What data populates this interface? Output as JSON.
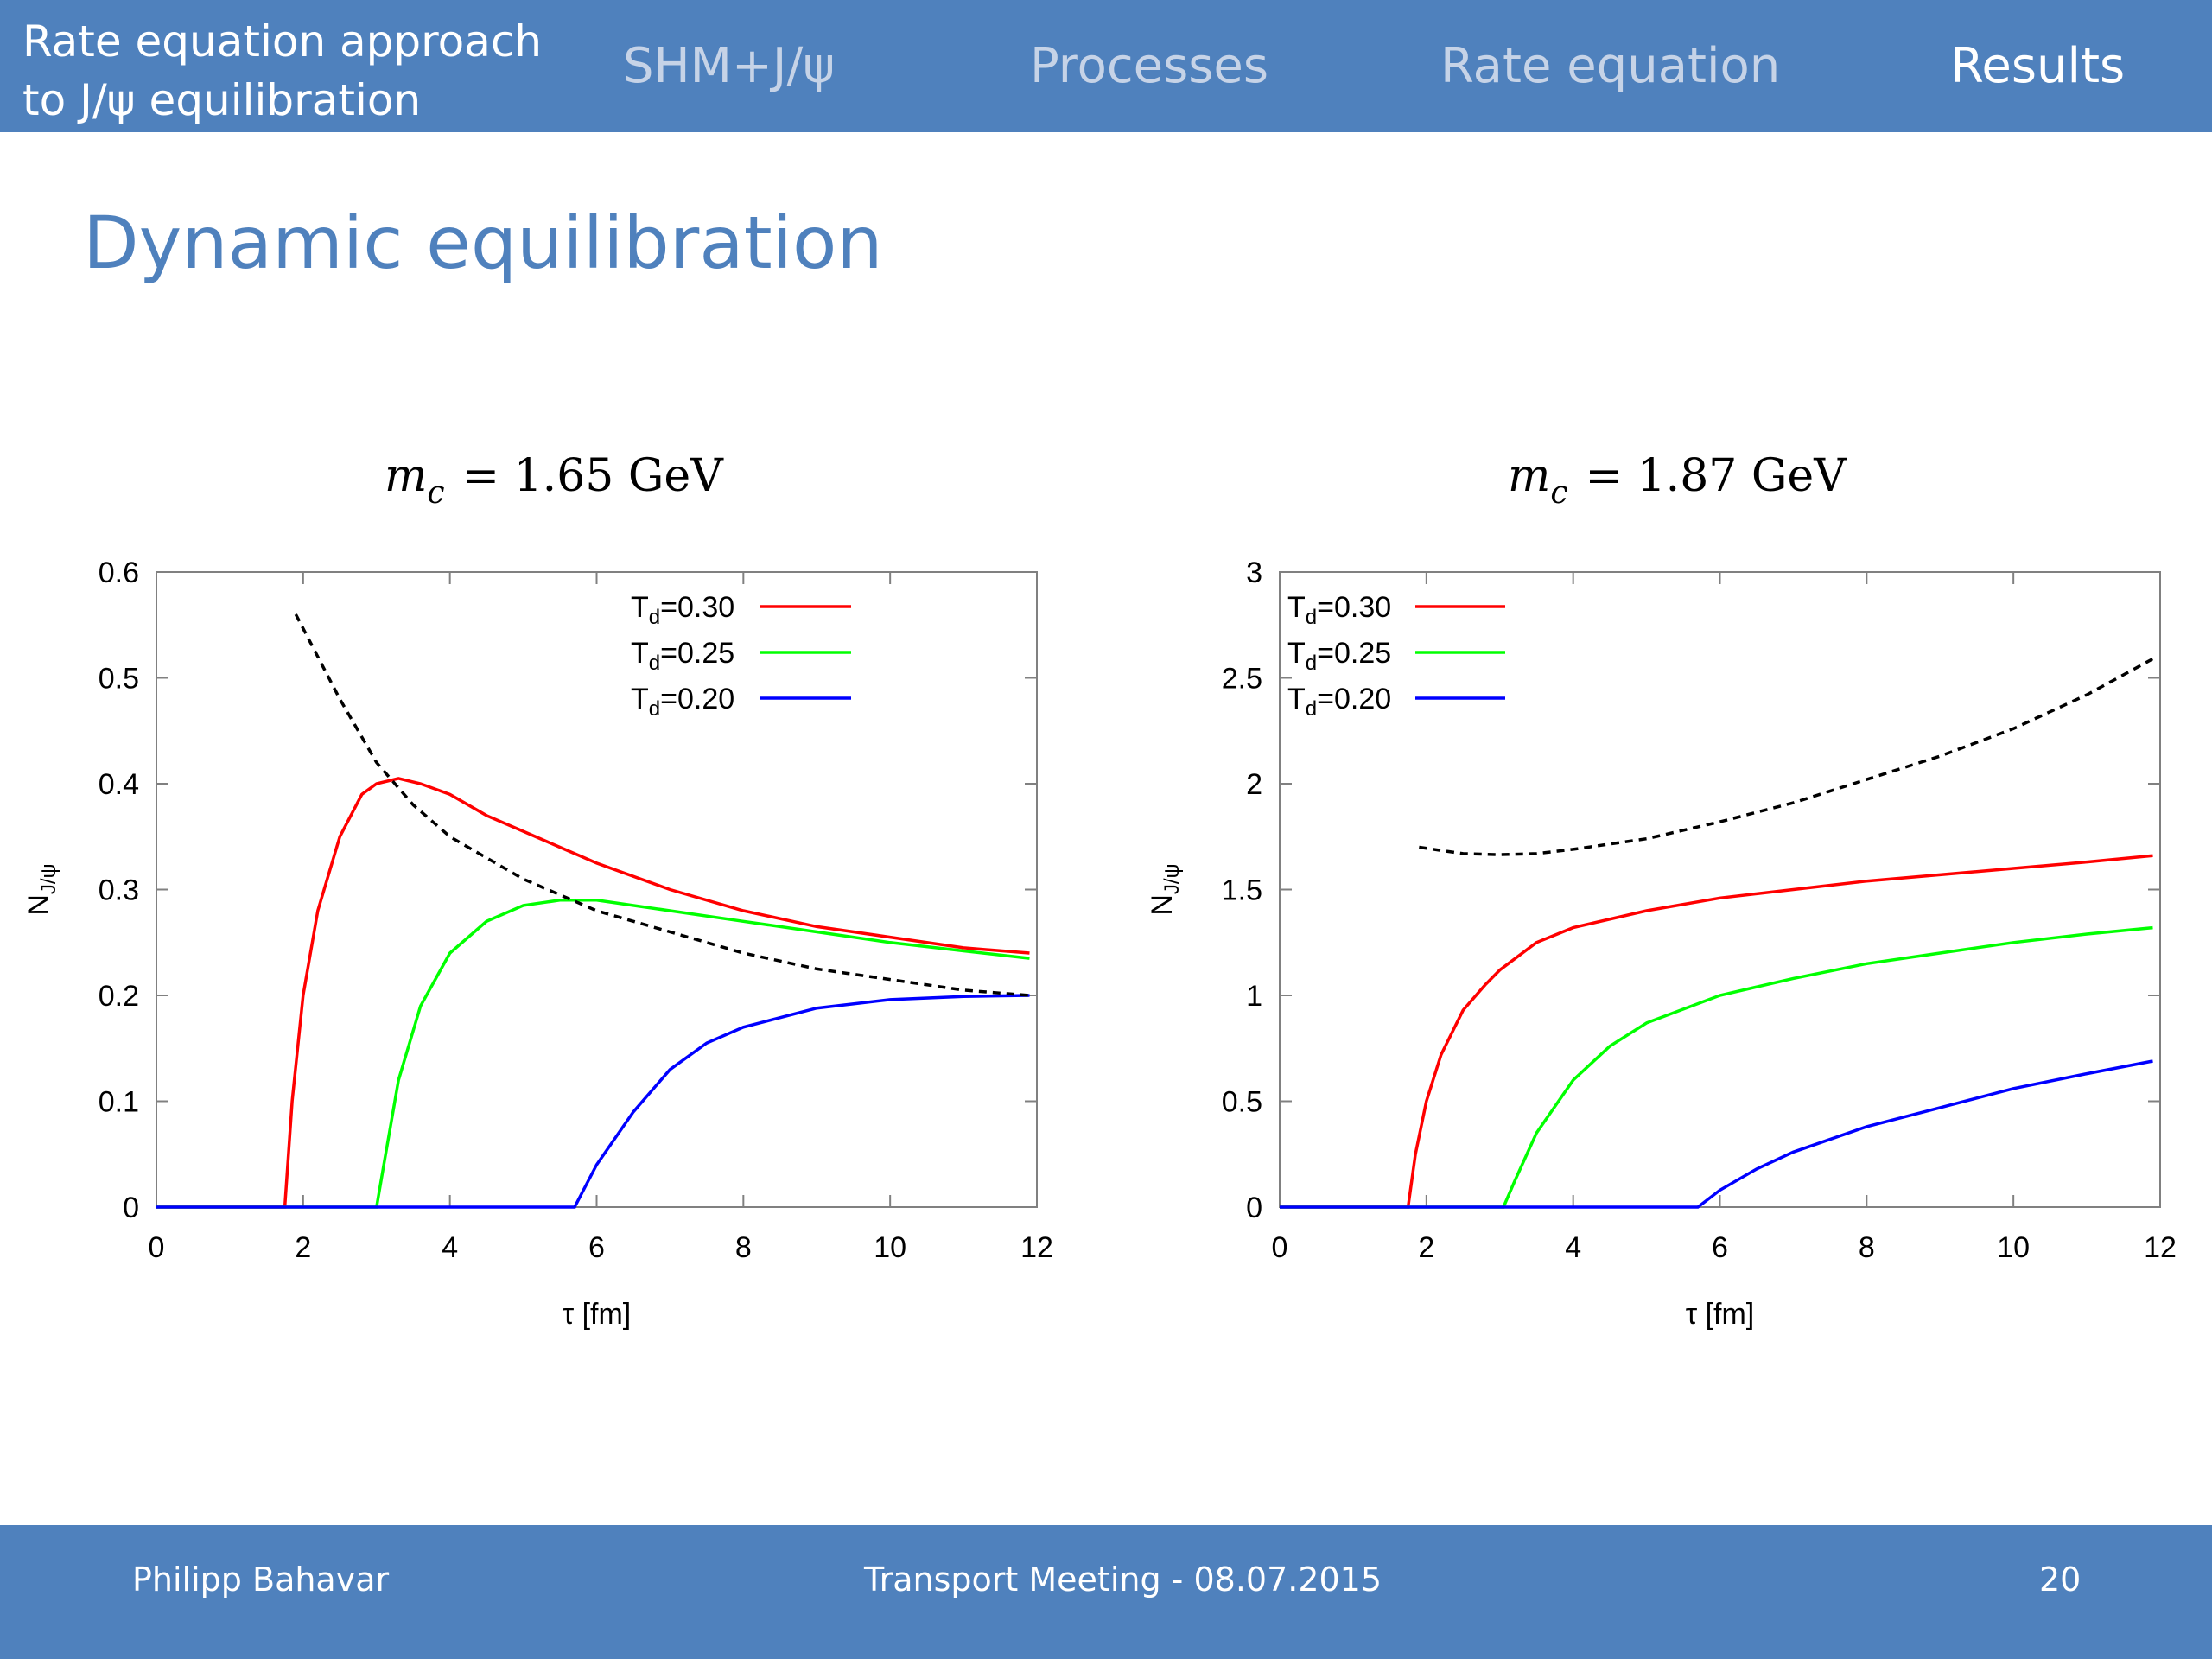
{
  "header": {
    "deck_title_line1": "Rate equation approach",
    "deck_title_line2": "to J/ψ equilibration",
    "nav": [
      {
        "label": "SHM+J/ψ",
        "active": false
      },
      {
        "label": "Processes",
        "active": false
      },
      {
        "label": "Rate equation",
        "active": false
      },
      {
        "label": "Results",
        "active": true
      }
    ]
  },
  "slide": {
    "title": "Dynamic equilibration"
  },
  "footer": {
    "author": "Philipp Bahavar",
    "event": "Transport Meeting -  08.07.2015",
    "page": "20"
  },
  "colors": {
    "bar": "#4f81bd",
    "title": "#4f81bd",
    "red": "#ff0000",
    "green": "#00ff00",
    "blue": "#0000ff",
    "equilibrium": "#000000"
  },
  "chart_data": [
    {
      "type": "line",
      "title_symbol": "m",
      "title_subscript": "c",
      "title_value": "= 1.65 GeV",
      "xlabel": "τ [fm]",
      "ylabel_main": "N",
      "ylabel_sub": "J/ψ",
      "xlim": [
        0,
        12
      ],
      "ylim": [
        0,
        0.6
      ],
      "xticks": [
        "0",
        "2",
        "4",
        "6",
        "8",
        "10",
        "12"
      ],
      "yticks": [
        "0",
        "0.1",
        "0.2",
        "0.3",
        "0.4",
        "0.5",
        "0.6"
      ],
      "legend_position": "top-right",
      "series": [
        {
          "name_main": "T",
          "name_sub": "d",
          "name_value": "=0.30",
          "color": "#ff0000",
          "dashed": false,
          "x": [
            0,
            1.75,
            1.85,
            2.0,
            2.2,
            2.5,
            2.8,
            3.0,
            3.3,
            3.6,
            4.0,
            4.5,
            5.0,
            5.5,
            6.0,
            7.0,
            8.0,
            9.0,
            10.0,
            11.0,
            11.9
          ],
          "y": [
            0,
            0,
            0.1,
            0.2,
            0.28,
            0.35,
            0.39,
            0.4,
            0.405,
            0.4,
            0.39,
            0.37,
            0.355,
            0.34,
            0.325,
            0.3,
            0.28,
            0.265,
            0.255,
            0.245,
            0.24
          ]
        },
        {
          "name_main": "T",
          "name_sub": "d",
          "name_value": "=0.25",
          "color": "#00ff00",
          "dashed": false,
          "x": [
            0,
            3.0,
            3.1,
            3.3,
            3.6,
            4.0,
            4.5,
            5.0,
            5.5,
            6.0,
            7.0,
            8.0,
            9.0,
            10.0,
            11.0,
            11.9
          ],
          "y": [
            0,
            0,
            0.04,
            0.12,
            0.19,
            0.24,
            0.27,
            0.285,
            0.29,
            0.29,
            0.28,
            0.27,
            0.26,
            0.25,
            0.242,
            0.235
          ]
        },
        {
          "name_main": "T",
          "name_sub": "d",
          "name_value": "=0.20",
          "color": "#0000ff",
          "dashed": false,
          "x": [
            0,
            5.7,
            6.0,
            6.5,
            7.0,
            7.5,
            8.0,
            9.0,
            10.0,
            11.0,
            11.9
          ],
          "y": [
            0,
            0,
            0.04,
            0.09,
            0.13,
            0.155,
            0.17,
            0.188,
            0.196,
            0.199,
            0.2
          ]
        },
        {
          "name": "",
          "color": "#000000",
          "dashed": true,
          "x": [
            1.9,
            2.2,
            2.5,
            3.0,
            3.5,
            4.0,
            5.0,
            6.0,
            7.0,
            8.0,
            9.0,
            10.0,
            11.0,
            11.9
          ],
          "y": [
            0.56,
            0.52,
            0.48,
            0.42,
            0.38,
            0.35,
            0.31,
            0.28,
            0.26,
            0.24,
            0.225,
            0.215,
            0.205,
            0.2
          ]
        }
      ]
    },
    {
      "type": "line",
      "title_symbol": "m",
      "title_subscript": "c",
      "title_value": "= 1.87 GeV",
      "xlabel": "τ [fm]",
      "ylabel_main": "N",
      "ylabel_sub": "J/ψ",
      "xlim": [
        0,
        12
      ],
      "ylim": [
        0,
        3
      ],
      "xticks": [
        "0",
        "2",
        "4",
        "6",
        "8",
        "10",
        "12"
      ],
      "yticks": [
        "0",
        "0.5",
        "1",
        "1.5",
        "2",
        "2.5",
        "3"
      ],
      "legend_position": "top-left",
      "series": [
        {
          "name_main": "T",
          "name_sub": "d",
          "name_value": "=0.30",
          "color": "#ff0000",
          "dashed": false,
          "x": [
            0,
            1.75,
            1.85,
            2.0,
            2.2,
            2.5,
            2.8,
            3.0,
            3.5,
            4.0,
            5.0,
            6.0,
            7.0,
            8.0,
            9.0,
            10.0,
            11.0,
            11.9
          ],
          "y": [
            0,
            0,
            0.25,
            0.5,
            0.72,
            0.93,
            1.05,
            1.12,
            1.25,
            1.32,
            1.4,
            1.46,
            1.5,
            1.54,
            1.57,
            1.6,
            1.63,
            1.66
          ]
        },
        {
          "name_main": "T",
          "name_sub": "d",
          "name_value": "=0.25",
          "color": "#00ff00",
          "dashed": false,
          "x": [
            0,
            3.05,
            3.2,
            3.5,
            4.0,
            4.5,
            5.0,
            6.0,
            7.0,
            8.0,
            9.0,
            10.0,
            11.0,
            11.9
          ],
          "y": [
            0,
            0,
            0.12,
            0.35,
            0.6,
            0.76,
            0.87,
            1.0,
            1.08,
            1.15,
            1.2,
            1.25,
            1.29,
            1.32
          ]
        },
        {
          "name_main": "T",
          "name_sub": "d",
          "name_value": "=0.20",
          "color": "#0000ff",
          "dashed": false,
          "x": [
            0,
            5.7,
            6.0,
            6.5,
            7.0,
            8.0,
            9.0,
            10.0,
            11.0,
            11.9
          ],
          "y": [
            0,
            0,
            0.08,
            0.18,
            0.26,
            0.38,
            0.47,
            0.56,
            0.63,
            0.69
          ]
        },
        {
          "name": "",
          "color": "#000000",
          "dashed": true,
          "x": [
            1.9,
            2.5,
            3.0,
            3.5,
            4.0,
            5.0,
            6.0,
            7.0,
            8.0,
            9.0,
            10.0,
            11.0,
            11.9
          ],
          "y": [
            1.7,
            1.67,
            1.665,
            1.67,
            1.69,
            1.74,
            1.82,
            1.91,
            2.02,
            2.13,
            2.26,
            2.42,
            2.59
          ]
        }
      ]
    }
  ]
}
